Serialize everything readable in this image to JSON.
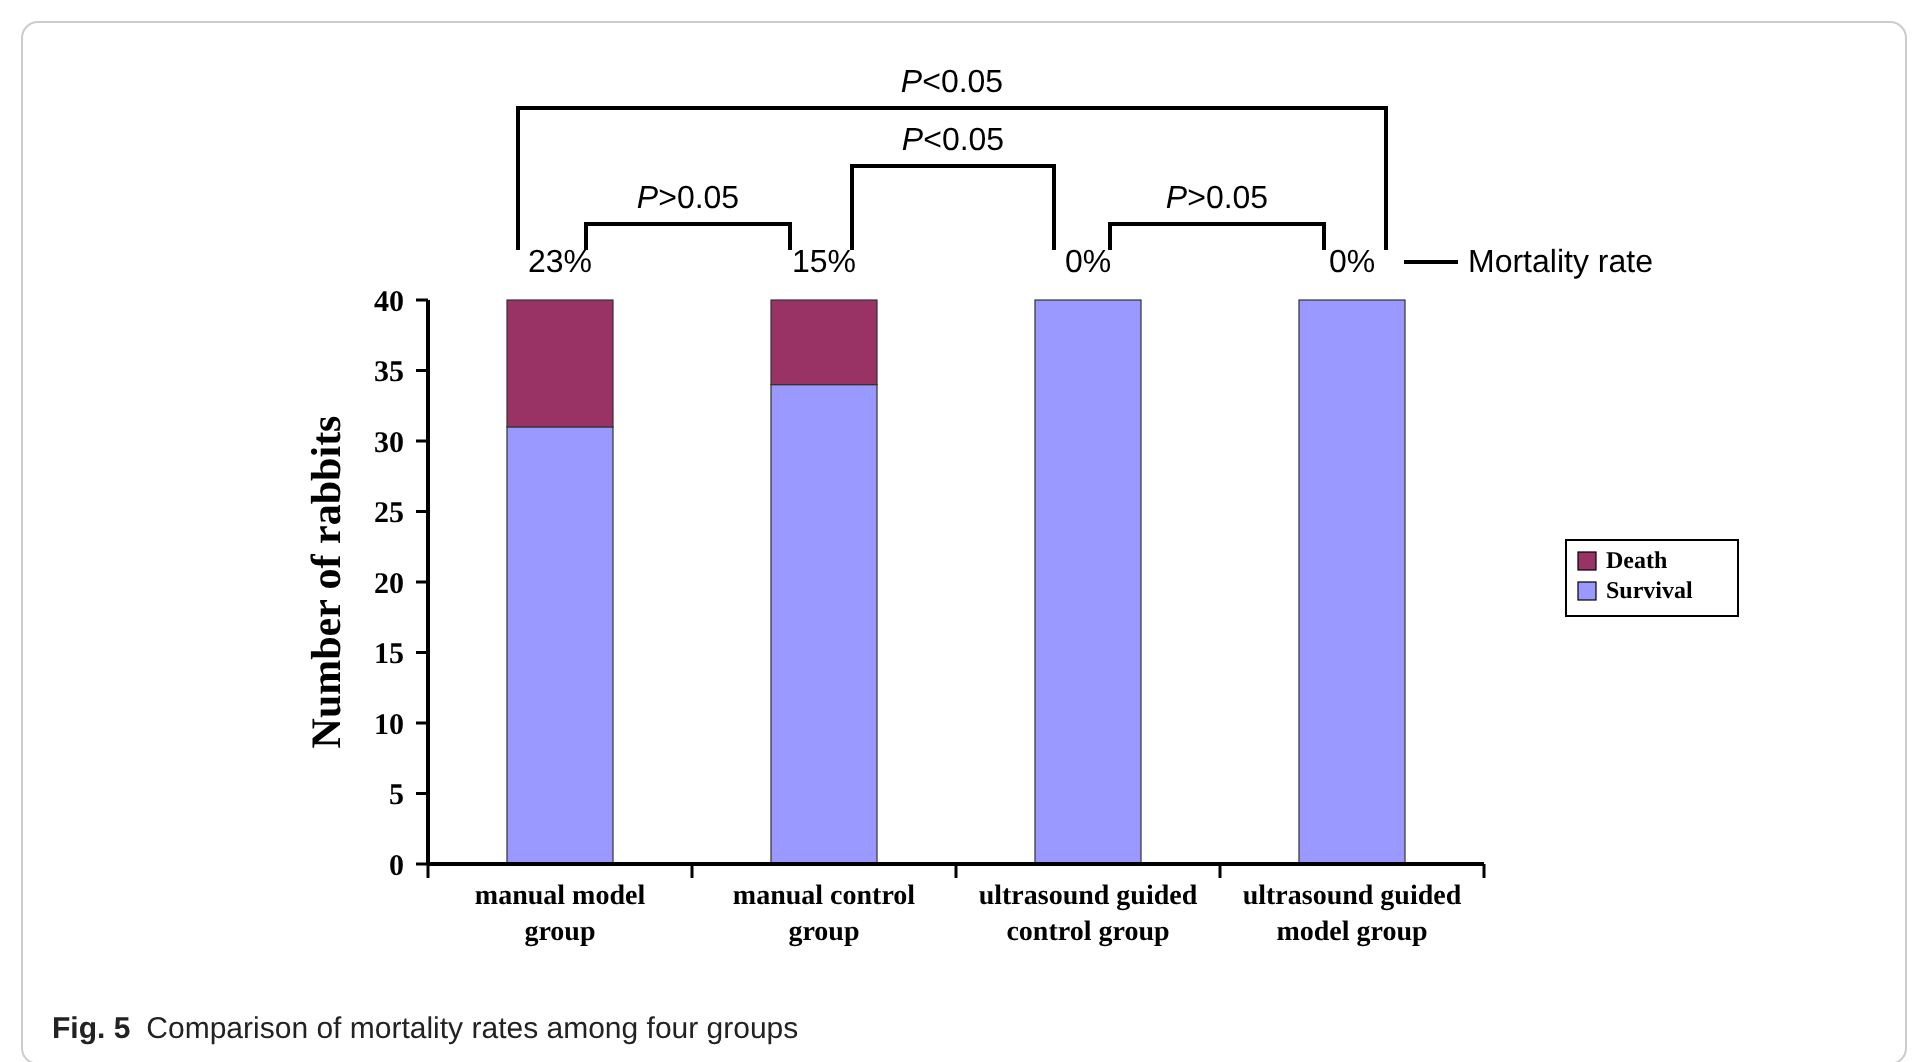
{
  "chart_data": {
    "type": "bar",
    "stacked": true,
    "ylabel": "Number of rabbits",
    "categories": [
      "manual model group",
      "manual control group",
      "ultrasound guided control group",
      "ultrasound guided model group"
    ],
    "series": [
      {
        "name": "Survival",
        "color": "#9999ff",
        "values": [
          31,
          34,
          40,
          40
        ]
      },
      {
        "name": "Death",
        "color": "#993366",
        "values": [
          9,
          6,
          0,
          0
        ]
      }
    ],
    "ylim": [
      0,
      40
    ],
    "yticks": [
      0,
      5,
      10,
      15,
      20,
      25,
      30,
      35,
      40
    ],
    "grid": false,
    "legend": "right",
    "annotations": [
      {
        "text": "23%",
        "x": "manual model group",
        "y": 40
      },
      {
        "text": "15%",
        "x": "manual control group",
        "y": 40
      },
      {
        "text": "0%",
        "x": "ultrasound guided control group",
        "y": 40
      },
      {
        "text": "0%",
        "x": "ultrasound guided model group",
        "y": 40
      },
      "Mortality rate",
      "P>0.05",
      "P<0.05",
      "P>0.05",
      "P<0.05",
      "Fig. 5",
      "Comparison of mortality rates among four groups"
    ]
  }
}
